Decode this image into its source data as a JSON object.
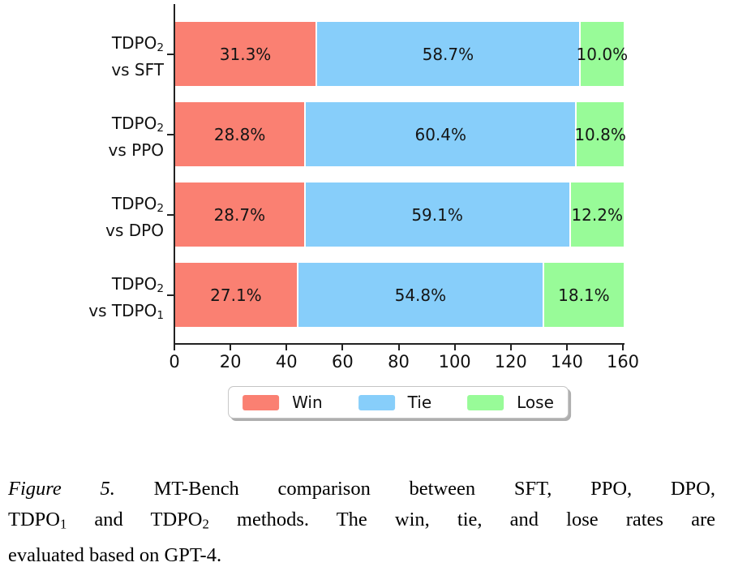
{
  "colors": {
    "win": "#FA8072",
    "tie": "#87CEFA",
    "lose": "#98FB98",
    "axis": "#222222",
    "text": "#111111",
    "legend_border": "#C4C4C4"
  },
  "legend": {
    "items": [
      {
        "label": "Win",
        "color_key": "win"
      },
      {
        "label": "Tie",
        "color_key": "tie"
      },
      {
        "label": "Lose",
        "color_key": "lose"
      }
    ]
  },
  "chart_data": {
    "type": "bar",
    "orientation": "horizontal",
    "stacked": true,
    "title": "",
    "xlabel": "",
    "ylabel": "",
    "x_axis": {
      "min": 0,
      "max": 160,
      "ticks": [
        0,
        20,
        40,
        60,
        80,
        100,
        120,
        140,
        160
      ]
    },
    "grid": false,
    "legend_position": "bottom",
    "categories": [
      {
        "name": "TDPO2 vs SFT",
        "lines": [
          [
            {
              "t": "TDPO"
            },
            {
              "t": "2",
              "sub": true
            }
          ],
          [
            {
              "t": "vs SFT"
            }
          ]
        ]
      },
      {
        "name": "TDPO2 vs PPO",
        "lines": [
          [
            {
              "t": "TDPO"
            },
            {
              "t": "2",
              "sub": true
            }
          ],
          [
            {
              "t": "vs PPO"
            }
          ]
        ]
      },
      {
        "name": "TDPO2 vs DPO",
        "lines": [
          [
            {
              "t": "TDPO"
            },
            {
              "t": "2",
              "sub": true
            }
          ],
          [
            {
              "t": "vs DPO"
            }
          ]
        ]
      },
      {
        "name": "TDPO2 vs TDPO1",
        "lines": [
          [
            {
              "t": "TDPO"
            },
            {
              "t": "2",
              "sub": true
            }
          ],
          [
            {
              "t": "vs TDPO"
            },
            {
              "t": "1",
              "sub": true
            }
          ]
        ]
      }
    ],
    "series": [
      {
        "name": "Win",
        "color_key": "win",
        "unit": "%",
        "values": [
          31.3,
          28.8,
          28.7,
          27.1
        ]
      },
      {
        "name": "Tie",
        "color_key": "tie",
        "unit": "%",
        "values": [
          58.7,
          60.4,
          59.1,
          54.8
        ]
      },
      {
        "name": "Lose",
        "color_key": "lose",
        "unit": "%",
        "values": [
          10.0,
          10.8,
          12.2,
          18.1
        ]
      }
    ]
  },
  "caption": {
    "lines": [
      [
        {
          "t": "Figure 5.",
          "italic": true
        },
        {
          "t": " MT-Bench comparison between SFT, PPO, DPO,"
        }
      ],
      [
        {
          "t": "TDPO"
        },
        {
          "t": "1",
          "sub": true
        },
        {
          "t": " and TDPO"
        },
        {
          "t": "2",
          "sub": true
        },
        {
          "t": " methods. The win, tie, and lose rates are"
        }
      ],
      [
        {
          "t": "evaluated based on GPT-4."
        }
      ]
    ]
  }
}
